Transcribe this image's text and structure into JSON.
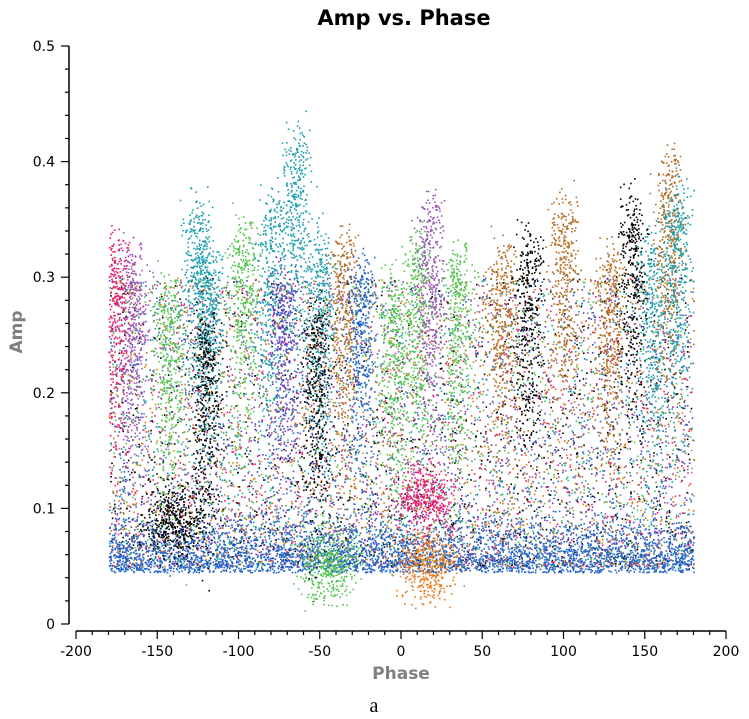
{
  "chart_data": {
    "type": "scatter",
    "title": "Amp vs. Phase",
    "xlabel": "Phase",
    "ylabel": "Amp",
    "caption": "a",
    "xlim": [
      -200,
      200
    ],
    "ylim": [
      0,
      0.5
    ],
    "x_ticks": [
      -200,
      -150,
      -100,
      -50,
      0,
      50,
      100,
      150,
      200
    ],
    "x_tick_labels": [
      "-200",
      "-150",
      "-100",
      "-50",
      "0",
      "50",
      "100",
      "150",
      "200"
    ],
    "y_ticks": [
      0,
      0.1,
      0.2,
      0.3,
      0.4,
      0.5
    ],
    "y_tick_labels": [
      "0",
      "0.1",
      "0.2",
      "0.3",
      "0.4",
      "0.5"
    ],
    "grid": false,
    "legend": "none",
    "point_colors": [
      "#1f62c9",
      "#e87a1c",
      "#52c44e",
      "#1f9fad",
      "#000000",
      "#e8186a",
      "#9b55b6",
      "#b36b22",
      "#5b3fc2"
    ],
    "data_range": {
      "phase": [
        -180,
        180
      ],
      "amp": [
        0.012,
        0.495
      ]
    },
    "clusters": [
      {
        "phase": -176,
        "amp_peak": 0.33,
        "color": "#e8186a"
      },
      {
        "phase": -165,
        "amp_peak": 0.32,
        "color": "#9b55b6"
      },
      {
        "phase": -143,
        "amp_peak": 0.29,
        "color": "#52c44e"
      },
      {
        "phase": -140,
        "amp_peak": 0.09,
        "color": "#000000"
      },
      {
        "phase": -125,
        "amp_peak": 0.36,
        "color": "#1f9fad"
      },
      {
        "phase": -118,
        "amp_peak": 0.32,
        "color": "#1f9fad"
      },
      {
        "phase": -120,
        "amp_peak": 0.26,
        "color": "#000000"
      },
      {
        "phase": -97,
        "amp_peak": 0.34,
        "color": "#52c44e"
      },
      {
        "phase": -80,
        "amp_peak": 0.36,
        "color": "#1f9fad"
      },
      {
        "phase": -73,
        "amp_peak": 0.3,
        "color": "#5b3fc2"
      },
      {
        "phase": -65,
        "amp_peak": 0.42,
        "color": "#1f9fad"
      },
      {
        "phase": -50,
        "amp_peak": 0.33,
        "color": "#1f9fad"
      },
      {
        "phase": -52,
        "amp_peak": 0.27,
        "color": "#000000"
      },
      {
        "phase": -35,
        "amp_peak": 0.33,
        "color": "#b36b22"
      },
      {
        "phase": -45,
        "amp_peak": 0.05,
        "color": "#52c44e"
      },
      {
        "phase": -25,
        "amp_peak": 0.31,
        "color": "#1f62c9"
      },
      {
        "phase": -5,
        "amp_peak": 0.29,
        "color": "#52c44e"
      },
      {
        "phase": 10,
        "amp_peak": 0.33,
        "color": "#52c44e"
      },
      {
        "phase": 18,
        "amp_peak": 0.36,
        "color": "#9b55b6"
      },
      {
        "phase": 17,
        "amp_peak": 0.05,
        "color": "#e87a1c"
      },
      {
        "phase": 15,
        "amp_peak": 0.11,
        "color": "#e8186a"
      },
      {
        "phase": 35,
        "amp_peak": 0.32,
        "color": "#52c44e"
      },
      {
        "phase": 62,
        "amp_peak": 0.32,
        "color": "#b36b22"
      },
      {
        "phase": 78,
        "amp_peak": 0.33,
        "color": "#000000"
      },
      {
        "phase": 100,
        "amp_peak": 0.36,
        "color": "#b36b22"
      },
      {
        "phase": 128,
        "amp_peak": 0.32,
        "color": "#b36b22"
      },
      {
        "phase": 142,
        "amp_peak": 0.36,
        "color": "#000000"
      },
      {
        "phase": 155,
        "amp_peak": 0.33,
        "color": "#1f9fad"
      },
      {
        "phase": 165,
        "amp_peak": 0.4,
        "color": "#b36b22"
      },
      {
        "phase": 170,
        "amp_peak": 0.37,
        "color": "#1f9fad"
      }
    ]
  }
}
